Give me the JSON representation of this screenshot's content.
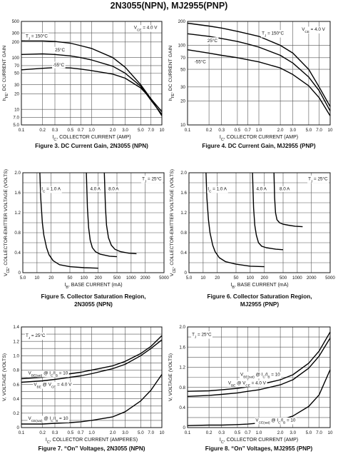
{
  "page": {
    "title": "2N3055(NPN), MJ2955(PNP)"
  },
  "chart_data": [
    {
      "id": "fig3",
      "type": "line",
      "x_scale": "log",
      "y_scale": "log",
      "xlim": [
        0.1,
        10
      ],
      "ylim": [
        5,
        500
      ],
      "x_ticks": [
        0.1,
        0.2,
        0.3,
        0.5,
        0.7,
        1,
        2,
        3,
        5,
        7,
        10
      ],
      "x_tick_labels": [
        "0.1",
        "0.2",
        "0.3",
        "0.5",
        "0.7",
        "1.0",
        "2.0",
        "3.0",
        "5.0",
        "7.0",
        "10"
      ],
      "y_ticks": [
        5,
        7,
        10,
        20,
        30,
        50,
        70,
        100,
        200,
        300,
        500
      ],
      "y_tick_labels": [
        "5.0",
        "7.0",
        "10",
        "20",
        "30",
        "50",
        "70",
        "100",
        "200",
        "300",
        "500"
      ],
      "xlabel": "I",
      "xlabel_sub": "C",
      "xlabel_rest": ", COLLECTOR CURRENT (AMP)",
      "ylabel": "h",
      "ylabel_sub": "FE",
      "ylabel_rest": ", DC CURRENT GAIN",
      "grid": true,
      "annotations": [
        {
          "main": "V",
          "sub": "CE",
          "rest": " = 4.0 V",
          "anchor_x": 4.0,
          "anchor_y": 380
        },
        {
          "main": "T",
          "sub": "J",
          "rest": " = 150°C",
          "anchor_x": 0.115,
          "anchor_y": 260
        },
        {
          "main": "25°C",
          "sub": "",
          "rest": "",
          "anchor_x": 0.3,
          "anchor_y": 140
        },
        {
          "main": "-55°C",
          "sub": "",
          "rest": "",
          "anchor_x": 0.28,
          "anchor_y": 72
        }
      ],
      "caption": "Figure 3. DC Current Gain, 2N3055 (NPN)",
      "series": [
        {
          "x": [
            0.1,
            0.2,
            0.3,
            0.5,
            0.7,
            1,
            2,
            3,
            5,
            7,
            10
          ],
          "y": [
            210,
            210,
            205,
            190,
            170,
            150,
            100,
            65,
            30,
            16,
            7.5
          ]
        },
        {
          "x": [
            0.1,
            0.2,
            0.3,
            0.5,
            0.7,
            1,
            2,
            3,
            5,
            7,
            10
          ],
          "y": [
            115,
            118,
            115,
            108,
            100,
            90,
            68,
            50,
            28,
            15,
            8
          ]
        },
        {
          "x": [
            0.1,
            0.2,
            0.3,
            0.5,
            0.7,
            1,
            2,
            3,
            5,
            7,
            10
          ],
          "y": [
            58,
            62,
            64,
            63,
            60,
            56,
            48,
            40,
            26,
            16,
            9
          ]
        }
      ]
    },
    {
      "id": "fig4",
      "type": "line",
      "x_scale": "log",
      "y_scale": "log",
      "xlim": [
        0.1,
        10
      ],
      "ylim": [
        10,
        200
      ],
      "x_ticks": [
        0.1,
        0.2,
        0.3,
        0.5,
        0.7,
        1,
        2,
        3,
        5,
        7,
        10
      ],
      "x_tick_labels": [
        "0.1",
        "0.2",
        "0.3",
        "0.5",
        "0.7",
        "1.0",
        "2.0",
        "3.0",
        "5.0",
        "7.0",
        "10"
      ],
      "y_ticks": [
        10,
        20,
        30,
        50,
        70,
        100,
        200
      ],
      "y_tick_labels": [
        "10",
        "20",
        "30",
        "50",
        "70",
        "100",
        "200"
      ],
      "xlabel": "I",
      "xlabel_sub": "C",
      "xlabel_rest": ", COLLECTOR CURRENT (AMP)",
      "ylabel": "h",
      "ylabel_sub": "FE",
      "ylabel_rest": ", DC CURRENT GAIN",
      "grid": true,
      "annotations": [
        {
          "main": "V",
          "sub": "CE",
          "rest": " = 4.0 V",
          "anchor_x": 4.0,
          "anchor_y": 160
        },
        {
          "main": "T",
          "sub": "J",
          "rest": " = 150°C",
          "anchor_x": 1.1,
          "anchor_y": 142
        },
        {
          "main": "25°C",
          "sub": "",
          "rest": "",
          "anchor_x": 0.19,
          "anchor_y": 115
        },
        {
          "main": "-55°C",
          "sub": "",
          "rest": "",
          "anchor_x": 0.125,
          "anchor_y": 62
        }
      ],
      "caption": "Figure 4. DC Current Gain, MJ2955 (PNP)",
      "series": [
        {
          "x": [
            0.1,
            0.2,
            0.3,
            0.5,
            0.7,
            1,
            2,
            3,
            5,
            7,
            10
          ],
          "y": [
            190,
            175,
            165,
            150,
            140,
            130,
            100,
            80,
            50,
            30,
            17
          ]
        },
        {
          "x": [
            0.1,
            0.2,
            0.3,
            0.5,
            0.7,
            1,
            2,
            3,
            5,
            7,
            10
          ],
          "y": [
            140,
            130,
            122,
            112,
            104,
            95,
            75,
            60,
            40,
            27,
            15
          ]
        },
        {
          "x": [
            0.1,
            0.2,
            0.3,
            0.5,
            0.7,
            1,
            2,
            3,
            5,
            7,
            10
          ],
          "y": [
            88,
            80,
            75,
            70,
            66,
            62,
            52,
            43,
            31,
            22,
            13
          ]
        }
      ]
    },
    {
      "id": "fig5",
      "type": "line",
      "x_scale": "log",
      "y_scale": "linear",
      "xlim": [
        5,
        5000
      ],
      "ylim": [
        0,
        2.0
      ],
      "x_ticks": [
        5,
        10,
        20,
        50,
        100,
        200,
        500,
        1000,
        2000,
        5000
      ],
      "x_tick_labels": [
        "5.0",
        "10",
        "20",
        "50",
        "100",
        "200",
        "500",
        "1000",
        "2000",
        "5000"
      ],
      "y_ticks": [
        0,
        0.4,
        0.8,
        1.2,
        1.6,
        2.0
      ],
      "y_tick_labels": [
        "0",
        "0.4",
        "0.8",
        "1.2",
        "1.6",
        "2.0"
      ],
      "xlabel": "I",
      "xlabel_sub": "B",
      "xlabel_rest": ", BASE CURRENT (mA)",
      "ylabel": "V",
      "ylabel_sub": "CE",
      "ylabel_rest": ", COLLECTOR-EMITTER VOLTAGE (VOLTS)",
      "grid": true,
      "annotations": [
        {
          "main": "T",
          "sub": "J",
          "rest": " = 25°C",
          "anchor_x": 1700,
          "anchor_y": 1.88
        },
        {
          "main": "I",
          "sub": "C",
          "rest": " = 1.0 A",
          "anchor_x": 12.5,
          "anchor_y": 1.68
        },
        {
          "main": "4.0 A",
          "sub": "",
          "rest": "",
          "anchor_x": 135,
          "anchor_y": 1.68
        },
        {
          "main": "8.0 A",
          "sub": "",
          "rest": "",
          "anchor_x": 330,
          "anchor_y": 1.68
        }
      ],
      "caption": "Figure 5. Collector Saturation Region,",
      "caption2": "2N3055 (NPN)",
      "series": [
        {
          "x": [
            11.5,
            12,
            13,
            14,
            16,
            18,
            22,
            30,
            50,
            100,
            200
          ],
          "y": [
            2.0,
            1.5,
            1.0,
            0.75,
            0.5,
            0.36,
            0.24,
            0.16,
            0.12,
            0.1,
            0.09
          ]
        },
        {
          "x": [
            112,
            118,
            125,
            135,
            150,
            175,
            220,
            350,
            500
          ],
          "y": [
            2.0,
            1.3,
            0.9,
            0.65,
            0.5,
            0.42,
            0.37,
            0.33,
            0.32
          ]
        },
        {
          "x": [
            270,
            285,
            300,
            330,
            380,
            450,
            600,
            900,
            1300
          ],
          "y": [
            2.0,
            1.3,
            0.95,
            0.7,
            0.55,
            0.47,
            0.42,
            0.39,
            0.38
          ]
        }
      ]
    },
    {
      "id": "fig6",
      "type": "line",
      "x_scale": "log",
      "y_scale": "linear",
      "xlim": [
        5,
        5000
      ],
      "ylim": [
        0,
        2.0
      ],
      "x_ticks": [
        5,
        10,
        20,
        50,
        100,
        200,
        500,
        1000,
        2000,
        5000
      ],
      "x_tick_labels": [
        "5.0",
        "10",
        "20",
        "50",
        "100",
        "200",
        "500",
        "1000",
        "2000",
        "5000"
      ],
      "y_ticks": [
        0,
        0.4,
        0.8,
        1.2,
        1.6,
        2.0
      ],
      "y_tick_labels": [
        "0",
        "0.4",
        "0.8",
        "1.2",
        "1.6",
        "2.0"
      ],
      "xlabel": "I",
      "xlabel_sub": "B",
      "xlabel_rest": ", BASE CURRENT (mA)",
      "ylabel": "V",
      "ylabel_sub": "CE",
      "ylabel_rest": ", COLLECTOR-EMITTER VOLTAGE (VOLTS)",
      "grid": true,
      "annotations": [
        {
          "main": "T",
          "sub": "J",
          "rest": " = 25°C",
          "anchor_x": 1700,
          "anchor_y": 1.88
        },
        {
          "main": "I",
          "sub": "C",
          "rest": " = 1.0 A",
          "anchor_x": 12.5,
          "anchor_y": 1.68
        },
        {
          "main": "4.0 A",
          "sub": "",
          "rest": "",
          "anchor_x": 135,
          "anchor_y": 1.68
        },
        {
          "main": "8.0 A",
          "sub": "",
          "rest": "",
          "anchor_x": 420,
          "anchor_y": 1.68
        }
      ],
      "caption": "Figure 6. Collector Saturation Region,",
      "caption2": "MJ2955 (PNP)",
      "series": [
        {
          "x": [
            11.5,
            12,
            13,
            14,
            16,
            18,
            22,
            30,
            50,
            100,
            200
          ],
          "y": [
            2.0,
            1.5,
            1.05,
            0.8,
            0.55,
            0.42,
            0.3,
            0.22,
            0.17,
            0.13,
            0.12
          ]
        },
        {
          "x": [
            112,
            118,
            125,
            135,
            150,
            175,
            220,
            350,
            500
          ],
          "y": [
            2.0,
            1.3,
            0.95,
            0.75,
            0.6,
            0.53,
            0.5,
            0.47,
            0.46
          ]
        },
        {
          "x": [
            320,
            330,
            345,
            370,
            420,
            500,
            650,
            900,
            1300
          ],
          "y": [
            2.0,
            1.5,
            1.2,
            1.06,
            1.0,
            0.97,
            0.95,
            0.93,
            0.92
          ]
        }
      ]
    },
    {
      "id": "fig7",
      "type": "line",
      "x_scale": "log",
      "y_scale": "linear",
      "xlim": [
        0.1,
        10
      ],
      "ylim": [
        0,
        1.4
      ],
      "x_ticks": [
        0.1,
        0.2,
        0.3,
        0.5,
        0.7,
        1,
        2,
        3,
        5,
        7,
        10
      ],
      "x_tick_labels": [
        "0.1",
        "0.2",
        "0.3",
        "0.5",
        "0.7",
        "1.0",
        "2.0",
        "3.0",
        "5.0",
        "7.0",
        "10"
      ],
      "y_ticks": [
        0,
        0.2,
        0.4,
        0.6,
        0.8,
        1.0,
        1.2,
        1.4
      ],
      "y_tick_labels": [
        "0",
        "0.2",
        "0.4",
        "0.6",
        "0.8",
        "1.0",
        "1.2",
        "1.4"
      ],
      "xlabel": "I",
      "xlabel_sub": "C",
      "xlabel_rest": ", COLLECTOR CURRENT (AMPERES)",
      "ylabel": "V, VOLTAGE (VOLTS)",
      "ylabel_sub": "",
      "ylabel_rest": "",
      "grid": true,
      "annotations": [
        {
          "main": "T",
          "sub": "J",
          "rest": " = 25°C",
          "anchor_x": 0.115,
          "anchor_y": 1.28
        },
        {
          "main": "V",
          "sub": "BE(sat)",
          "rest": " @ I_C/I_B = 10",
          "anchor_x": 0.125,
          "anchor_y": 0.76
        },
        {
          "main": "V",
          "sub": "BE",
          "rest": " @ V_CE = 4.0 V",
          "anchor_x": 0.15,
          "anchor_y": 0.6
        },
        {
          "main": "V",
          "sub": "CE(sat)",
          "rest": " @ I_C/I_B = 10",
          "anchor_x": 0.125,
          "anchor_y": 0.13
        }
      ],
      "caption": "Figure 7. “On” Voltages, 2N3055 (NPN)",
      "series": [
        {
          "x": [
            0.1,
            0.2,
            0.3,
            0.5,
            0.7,
            1,
            2,
            3,
            5,
            7,
            10
          ],
          "y": [
            0.68,
            0.7,
            0.72,
            0.75,
            0.77,
            0.8,
            0.86,
            0.92,
            1.03,
            1.13,
            1.28
          ]
        },
        {
          "x": [
            0.1,
            0.2,
            0.3,
            0.5,
            0.7,
            1,
            2,
            3,
            5,
            7,
            10
          ],
          "y": [
            0.63,
            0.65,
            0.67,
            0.7,
            0.72,
            0.75,
            0.82,
            0.88,
            1.0,
            1.1,
            1.22
          ]
        },
        {
          "x": [
            0.1,
            0.2,
            0.3,
            0.5,
            0.7,
            1,
            2,
            3,
            5,
            7,
            10
          ],
          "y": [
            0.05,
            0.05,
            0.06,
            0.07,
            0.08,
            0.1,
            0.15,
            0.22,
            0.37,
            0.52,
            0.74
          ]
        }
      ]
    },
    {
      "id": "fig8",
      "type": "line",
      "x_scale": "log",
      "y_scale": "linear",
      "xlim": [
        0.1,
        10
      ],
      "ylim": [
        0,
        2.0
      ],
      "x_ticks": [
        0.1,
        0.2,
        0.3,
        0.5,
        0.7,
        1,
        2,
        3,
        5,
        7,
        10
      ],
      "x_tick_labels": [
        "0.1",
        "0.2",
        "0.3",
        "0.5",
        "0.7",
        "1.0",
        "2.0",
        "3.0",
        "5.0",
        "7.0",
        "10"
      ],
      "y_ticks": [
        0,
        0.4,
        0.8,
        1.2,
        1.6,
        2.0
      ],
      "y_tick_labels": [
        "0",
        "0.4",
        "0.8",
        "1.2",
        "1.6",
        "2.0"
      ],
      "xlabel": "I",
      "xlabel_sub": "C",
      "xlabel_rest": ", COLLECTOR CURRENT (AMP)",
      "ylabel": "V, VOLTAGE (VOLTS)",
      "ylabel_sub": "",
      "ylabel_rest": "",
      "grid": true,
      "annotations": [
        {
          "main": "T",
          "sub": "J",
          "rest": " = 25°C",
          "anchor_x": 0.115,
          "anchor_y": 1.85
        },
        {
          "main": "V",
          "sub": "BE(sat)",
          "rest": " @ I_C/I_B = 10",
          "anchor_x": 0.55,
          "anchor_y": 1.06
        },
        {
          "main": "V",
          "sub": "BE",
          "rest": " @ V_CE = 4.0 V",
          "anchor_x": 0.37,
          "anchor_y": 0.89
        },
        {
          "main": "V",
          "sub": "CE(sat)",
          "rest": " @ I_C/I_B = 10",
          "anchor_x": 0.9,
          "anchor_y": 0.15
        }
      ],
      "caption": "Figure 8. “On” Voltages, MJ2955 (PNP)",
      "series": [
        {
          "x": [
            0.1,
            0.2,
            0.3,
            0.5,
            0.7,
            1,
            2,
            3,
            5,
            7,
            10
          ],
          "y": [
            0.72,
            0.73,
            0.75,
            0.78,
            0.81,
            0.85,
            0.95,
            1.05,
            1.28,
            1.52,
            1.9
          ]
        },
        {
          "x": [
            0.1,
            0.2,
            0.3,
            0.5,
            0.7,
            1,
            2,
            3,
            5,
            7,
            10
          ],
          "y": [
            0.62,
            0.64,
            0.66,
            0.69,
            0.72,
            0.75,
            0.85,
            0.95,
            1.18,
            1.42,
            1.78
          ]
        },
        {
          "x": [
            0.1,
            0.2,
            0.3,
            0.5,
            0.7,
            1,
            2,
            3,
            5,
            7,
            10
          ],
          "y": [
            0.04,
            0.05,
            0.05,
            0.06,
            0.07,
            0.09,
            0.15,
            0.23,
            0.42,
            0.65,
            1.15
          ]
        }
      ]
    }
  ]
}
